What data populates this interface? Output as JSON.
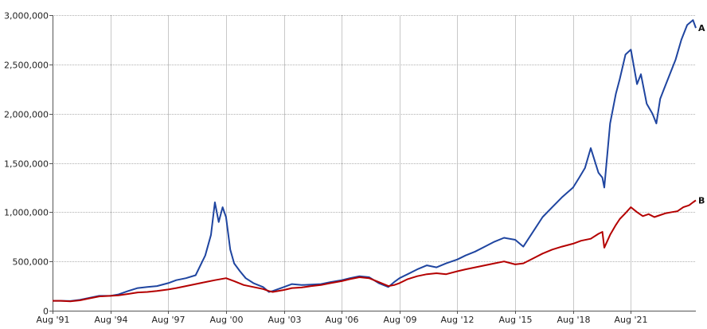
{
  "chart_data": {
    "type": "line",
    "title": "",
    "xlabel": "",
    "ylabel": "",
    "ylim": [
      0,
      3000000
    ],
    "y_ticks": [
      0,
      500000,
      1000000,
      1500000,
      2000000,
      2500000,
      3000000
    ],
    "y_tick_labels": [
      "0",
      "500,000",
      "1,000,000",
      "1,500,000",
      "2,000,000",
      "2,500,000",
      "3,000,000"
    ],
    "x_ticks": [
      1991.58,
      1994.58,
      1997.58,
      2000.58,
      2003.58,
      2006.58,
      2009.58,
      2012.58,
      2015.58,
      2018.58,
      2021.58
    ],
    "x_tick_labels": [
      "Aug '91",
      "Aug '94",
      "Aug '97",
      "Aug '00",
      "Aug '03",
      "Aug '06",
      "Aug '09",
      "Aug '12",
      "Aug '15",
      "Aug '18",
      "Aug '21"
    ],
    "xlim": [
      1991.58,
      2024.95
    ],
    "grid": true,
    "series": [
      {
        "name": "A",
        "color": "#1f45a0",
        "x": [
          1991.58,
          1992.0,
          1992.5,
          1993.0,
          1993.5,
          1994.0,
          1994.58,
          1995.0,
          1995.5,
          1996.0,
          1996.5,
          1997.0,
          1997.58,
          1998.0,
          1998.5,
          1999.0,
          1999.5,
          1999.8,
          2000.0,
          2000.2,
          2000.4,
          2000.58,
          2000.8,
          2001.0,
          2001.3,
          2001.6,
          2002.0,
          2002.5,
          2002.8,
          2003.0,
          2003.58,
          2004.0,
          2004.5,
          2005.0,
          2005.5,
          2006.0,
          2006.58,
          2007.0,
          2007.5,
          2008.0,
          2008.5,
          2009.0,
          2009.3,
          2009.58,
          2010.0,
          2010.5,
          2011.0,
          2011.5,
          2012.0,
          2012.58,
          2013.0,
          2013.5,
          2014.0,
          2014.5,
          2015.0,
          2015.58,
          2016.0,
          2016.5,
          2017.0,
          2017.5,
          2018.0,
          2018.58,
          2018.9,
          2019.2,
          2019.5,
          2019.9,
          2020.1,
          2020.2,
          2020.5,
          2020.8,
          2021.0,
          2021.3,
          2021.58,
          2021.9,
          2022.1,
          2022.4,
          2022.7,
          2022.9,
          2023.1,
          2023.3,
          2023.6,
          2023.9,
          2024.2,
          2024.5,
          2024.8,
          2024.95
        ],
        "values": [
          100000,
          100000,
          98000,
          110000,
          130000,
          150000,
          150000,
          165000,
          200000,
          230000,
          240000,
          250000,
          280000,
          310000,
          330000,
          360000,
          560000,
          770000,
          1100000,
          900000,
          1050000,
          950000,
          620000,
          480000,
          400000,
          330000,
          280000,
          240000,
          190000,
          200000,
          240000,
          270000,
          260000,
          265000,
          270000,
          290000,
          310000,
          330000,
          350000,
          340000,
          280000,
          240000,
          290000,
          330000,
          370000,
          420000,
          460000,
          440000,
          480000,
          520000,
          560000,
          600000,
          650000,
          700000,
          740000,
          720000,
          650000,
          800000,
          950000,
          1050000,
          1150000,
          1250000,
          1350000,
          1450000,
          1650000,
          1400000,
          1350000,
          1250000,
          1900000,
          2200000,
          2350000,
          2600000,
          2650000,
          2300000,
          2400000,
          2100000,
          2000000,
          1900000,
          2150000,
          2250000,
          2400000,
          2550000,
          2750000,
          2900000,
          2950000,
          2870000
        ]
      },
      {
        "name": "B",
        "color": "#b40000",
        "x": [
          1991.58,
          1992.0,
          1992.5,
          1993.0,
          1993.5,
          1994.0,
          1994.58,
          1995.0,
          1995.5,
          1996.0,
          1996.5,
          1997.0,
          1997.58,
          1998.0,
          1998.5,
          1999.0,
          1999.5,
          2000.0,
          2000.58,
          2001.0,
          2001.5,
          2002.0,
          2002.5,
          2002.8,
          2003.0,
          2003.58,
          2004.0,
          2004.5,
          2005.0,
          2005.5,
          2006.0,
          2006.58,
          2007.0,
          2007.5,
          2008.0,
          2008.5,
          2009.0,
          2009.3,
          2009.58,
          2010.0,
          2010.5,
          2011.0,
          2011.5,
          2012.0,
          2012.58,
          2013.0,
          2013.5,
          2014.0,
          2014.5,
          2015.0,
          2015.58,
          2016.0,
          2016.5,
          2017.0,
          2017.5,
          2018.0,
          2018.58,
          2019.0,
          2019.5,
          2019.9,
          2020.1,
          2020.2,
          2020.5,
          2020.8,
          2021.0,
          2021.3,
          2021.58,
          2021.9,
          2022.2,
          2022.5,
          2022.8,
          2023.1,
          2023.4,
          2023.7,
          2024.0,
          2024.3,
          2024.6,
          2024.8,
          2024.95
        ],
        "values": [
          100000,
          100000,
          95000,
          105000,
          125000,
          145000,
          150000,
          155000,
          170000,
          185000,
          190000,
          200000,
          215000,
          230000,
          250000,
          270000,
          290000,
          310000,
          330000,
          300000,
          260000,
          240000,
          220000,
          200000,
          190000,
          210000,
          230000,
          235000,
          250000,
          260000,
          280000,
          300000,
          320000,
          340000,
          330000,
          290000,
          250000,
          260000,
          280000,
          320000,
          350000,
          370000,
          380000,
          370000,
          400000,
          420000,
          440000,
          460000,
          480000,
          500000,
          470000,
          480000,
          530000,
          580000,
          620000,
          650000,
          680000,
          710000,
          730000,
          780000,
          800000,
          640000,
          770000,
          870000,
          930000,
          990000,
          1050000,
          1000000,
          960000,
          980000,
          950000,
          970000,
          990000,
          1000000,
          1010000,
          1050000,
          1070000,
          1100000,
          1120000
        ]
      }
    ]
  }
}
